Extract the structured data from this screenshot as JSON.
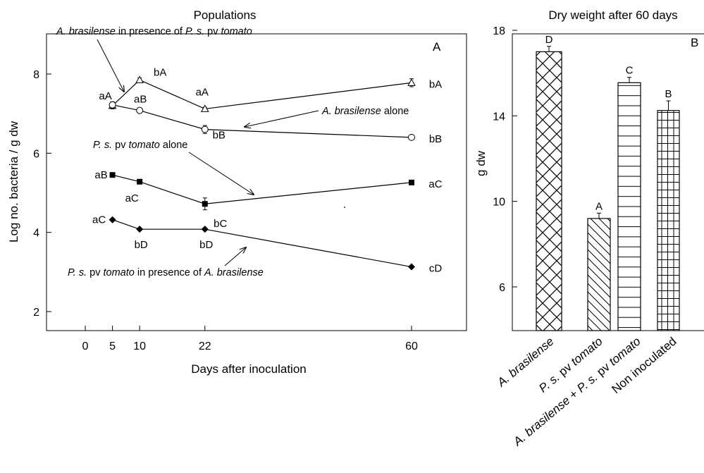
{
  "chart_data": [
    {
      "type": "line",
      "panel_letter": "A",
      "title": "Populations",
      "xlabel": "Days after inoculation",
      "ylabel": "Log no. bacteria / g dw",
      "xlim": [
        -7,
        67
      ],
      "ylim": [
        1.2,
        9.0
      ],
      "x_ticks": [
        0,
        5,
        10,
        22,
        60
      ],
      "y_ticks": [
        2,
        4,
        6,
        8
      ],
      "grid": false,
      "series": [
        {
          "id": "ab_with_ps",
          "marker": "open-triangle",
          "x": [
            5,
            10,
            22,
            60
          ],
          "y": [
            7.2,
            7.85,
            7.12,
            7.78
          ],
          "err": [
            0.08,
            0.05,
            0.04,
            0.1
          ],
          "labels": [
            "aA",
            "bA",
            "aA",
            "bA"
          ]
        },
        {
          "id": "ab_alone",
          "marker": "open-circle",
          "x": [
            5,
            10,
            22,
            60
          ],
          "y": [
            7.22,
            7.08,
            6.6,
            6.4
          ],
          "err": [
            0.08,
            0.05,
            0.1,
            0.04
          ],
          "labels": [
            "",
            "aB",
            "bB",
            "bB"
          ]
        },
        {
          "id": "ps_alone",
          "marker": "filled-square",
          "x": [
            5,
            10,
            22,
            60
          ],
          "y": [
            5.45,
            5.28,
            4.72,
            5.26
          ],
          "err": [
            0.05,
            0.05,
            0.15,
            0.05
          ],
          "labels": [
            "aB",
            "aC",
            "bC",
            "aC"
          ]
        },
        {
          "id": "ps_with_ab",
          "marker": "filled-diamond",
          "x": [
            5,
            10,
            22,
            60
          ],
          "y": [
            4.32,
            4.08,
            4.08,
            3.13
          ],
          "err": [
            0.03,
            0.03,
            0.03,
            0.03
          ],
          "labels": [
            "aC",
            "bD",
            "bD",
            "cD"
          ]
        }
      ],
      "annotations": [
        {
          "parts": [
            [
              "A. brasilense",
              true
            ],
            [
              " in presence of ",
              false
            ],
            [
              "P. s.",
              true
            ],
            [
              " pv ",
              false
            ],
            [
              "tomato",
              true
            ]
          ]
        },
        {
          "parts": [
            [
              "A. brasilense",
              true
            ],
            [
              " alone",
              false
            ]
          ]
        },
        {
          "parts": [
            [
              "P. s.",
              true
            ],
            [
              " pv ",
              false
            ],
            [
              "tomato",
              true
            ],
            [
              " alone",
              false
            ]
          ]
        },
        {
          "parts": [
            [
              "P. s.",
              true
            ],
            [
              " pv ",
              false
            ],
            [
              "tomato",
              true
            ],
            [
              " in presence of ",
              false
            ],
            [
              "A. brasilense",
              true
            ]
          ]
        }
      ]
    },
    {
      "type": "bar",
      "panel_letter": "B",
      "title": "Dry weight after 60 days",
      "ylabel": "g dw",
      "ylim": [
        4,
        18
      ],
      "y_ticks": [
        6,
        10,
        14,
        18
      ],
      "grid": false,
      "categories": [
        [
          [
            "A. brasilense",
            true
          ]
        ],
        [
          [
            "P. s.",
            true
          ],
          [
            " pv ",
            false
          ],
          [
            "tomato",
            true
          ]
        ],
        [
          [
            "A. brasilense",
            true
          ],
          [
            " + ",
            false
          ],
          [
            "P. s.",
            true
          ],
          [
            " pv ",
            false
          ],
          [
            "tomato",
            true
          ]
        ],
        [
          [
            "Non inoculated",
            false
          ]
        ]
      ],
      "values": [
        17.0,
        9.2,
        15.55,
        14.25
      ],
      "errors": [
        0.25,
        0.25,
        0.25,
        0.45
      ],
      "letters": [
        "D",
        "A",
        "C",
        "B"
      ],
      "patterns": [
        "crosshatch",
        "diagonal",
        "horizontal",
        "grid"
      ]
    }
  ]
}
